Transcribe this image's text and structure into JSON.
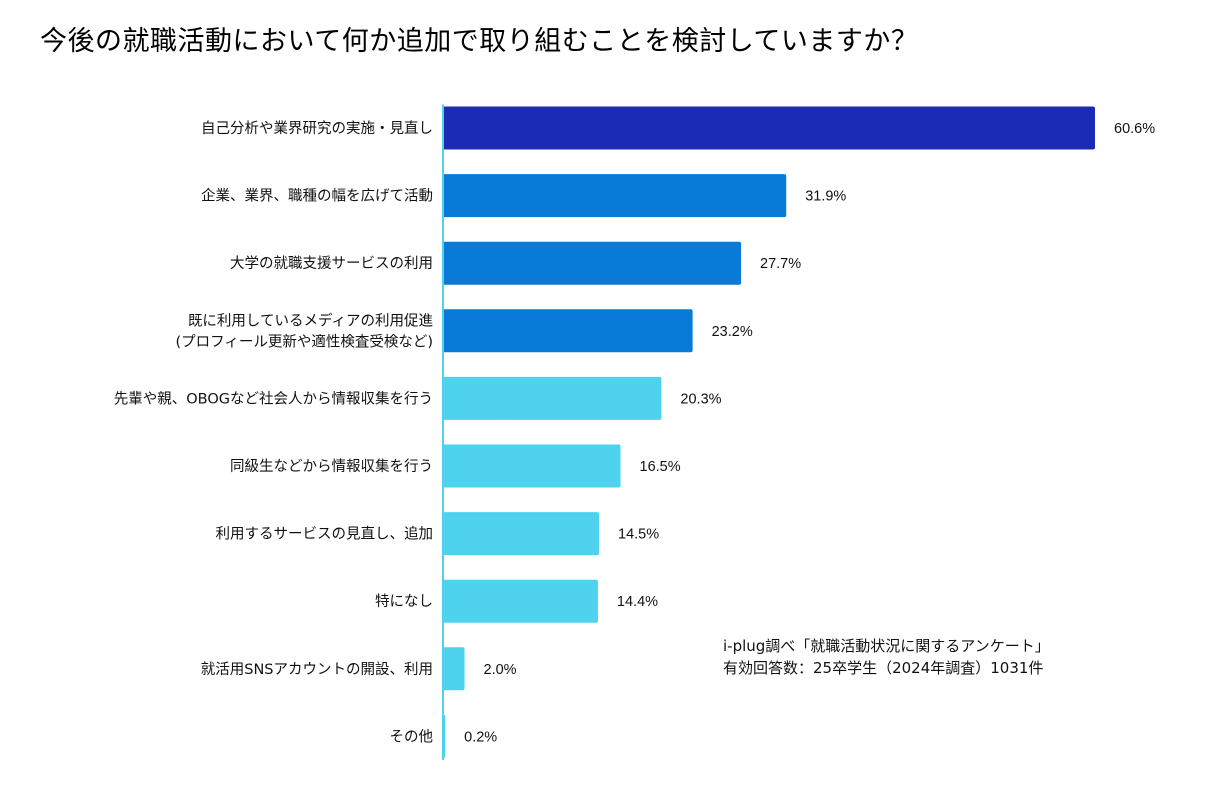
{
  "title": "今後の就職活動において何か追加で取り組むことを検討していますか？",
  "chart_data": {
    "type": "bar",
    "orientation": "horizontal",
    "unit": "%",
    "categories": [
      [
        "自己分析や業界研究の実施・見直し"
      ],
      [
        "企業、業界、職種の幅を広げて活動"
      ],
      [
        "大学の就職支援サービスの利用"
      ],
      [
        "既に利用しているメディアの利用促進",
        "(プロフィール更新や適性検査受検など)"
      ],
      [
        "先輩や親、OBOGなど社会人から情報収集を行う"
      ],
      [
        "同級生などから情報収集を行う"
      ],
      [
        "利用するサービスの見直し、追加"
      ],
      [
        "特になし"
      ],
      [
        "就活用SNSアカウントの開設、利用"
      ],
      [
        "その他"
      ]
    ],
    "values": [
      60.6,
      31.9,
      27.7,
      23.2,
      20.3,
      16.5,
      14.5,
      14.4,
      2.0,
      0.2
    ],
    "value_labels": [
      "60.6%",
      "31.9%",
      "27.7%",
      "23.2%",
      "20.3%",
      "16.5%",
      "14.5%",
      "14.4%",
      "2.0%",
      "0.2%"
    ],
    "colors": [
      "#1c2bb3",
      "#0a7ad8",
      "#0a7ad8",
      "#0a7ad8",
      "#4fd2ee",
      "#4fd2ee",
      "#4fd2ee",
      "#4fd2ee",
      "#4fd2ee",
      "#4fd2ee"
    ],
    "xlim": [
      0,
      60.6
    ],
    "axis_color": "#4fd2ee",
    "grid": false
  },
  "note": {
    "source": "i-plug調べ「就職活動状況に関するアンケート」",
    "respondents": "有効回答数：25卒学生（2024年調査）1031件"
  }
}
